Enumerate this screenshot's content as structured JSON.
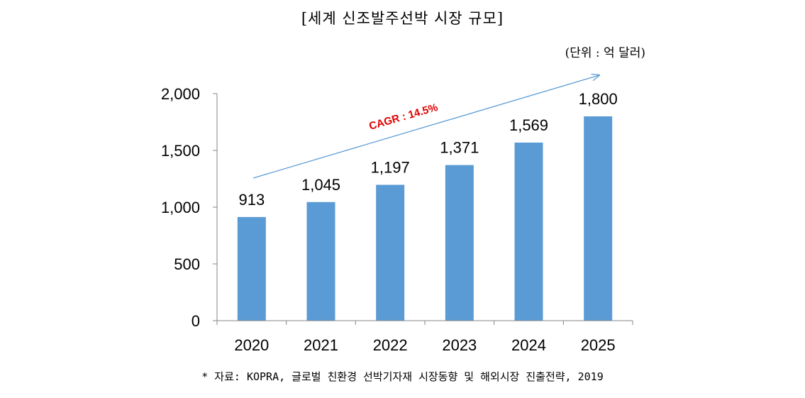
{
  "chart_data": {
    "type": "bar",
    "title": "[세계 신조발주선박 시장 규모]",
    "unit": "(단위 : 억 달러)",
    "categories": [
      "2020",
      "2021",
      "2022",
      "2023",
      "2024",
      "2025"
    ],
    "values": [
      913,
      1045,
      1197,
      1371,
      1569,
      1800
    ],
    "data_labels": [
      "913",
      "1,045",
      "1,197",
      "1,371",
      "1,569",
      "1,800"
    ],
    "ylim": [
      0,
      2000
    ],
    "yticks": [
      0,
      500,
      1000,
      1500,
      2000
    ],
    "ytick_labels": [
      "0",
      "500",
      "1,000",
      "1,500",
      "2,000"
    ],
    "grid": false,
    "legend": "none",
    "bar_color": "#5B9BD5",
    "annotation": {
      "text": "CAGR : 14.5%",
      "color": "#E00000",
      "arrow_color": "#5B9BD5"
    },
    "source": "* 자료: KOPRA, 글로벌 친환경 선박기자재 시장동향 및 해외시장 진출전략, 2019"
  }
}
